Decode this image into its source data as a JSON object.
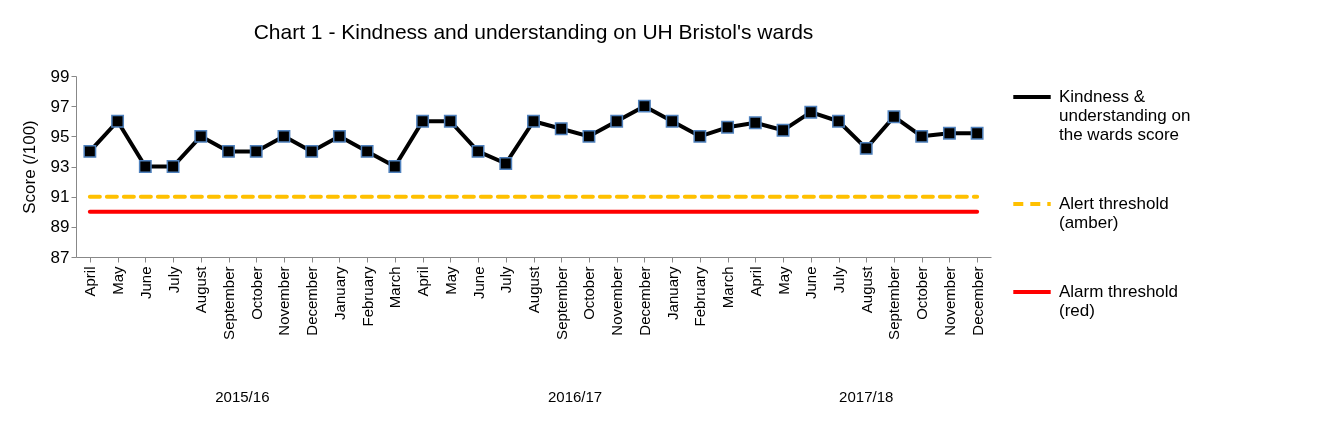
{
  "chart_data": {
    "type": "line",
    "title": "Chart 1 - Kindness and understanding on UH Bristol's wards",
    "ylabel": "Score (/100)",
    "categories": [
      "April",
      "May",
      "June",
      "July",
      "August",
      "September",
      "October",
      "November",
      "December",
      "January",
      "February",
      "March",
      "April",
      "May",
      "June",
      "July",
      "August",
      "September",
      "October",
      "November",
      "December",
      "January",
      "February",
      "March",
      "April",
      "May",
      "June",
      "July",
      "August",
      "September",
      "October",
      "November",
      "December"
    ],
    "series": [
      {
        "name": "Kindness & understanding on the wards score",
        "color": "#000000",
        "values": [
          94,
          96,
          93,
          93,
          95,
          94,
          94,
          95,
          94,
          95,
          94,
          93,
          96,
          96,
          94,
          93.2,
          96,
          95.5,
          95,
          96,
          97,
          96,
          95,
          95.6,
          95.9,
          95.4,
          96.6,
          96,
          94.2,
          96.3,
          95,
          95.2,
          95.2
        ]
      }
    ],
    "ylim": [
      87,
      99
    ],
    "yticks": [
      87,
      89,
      91,
      93,
      95,
      97,
      99
    ],
    "ref_lines": [
      {
        "axis": "y",
        "value": 91,
        "label": "Alert threshold (amber)",
        "color": "#ffc000",
        "line_style": "dashed"
      },
      {
        "axis": "y",
        "value": 90,
        "label": "Alarm threshold (red)",
        "color": "#ff0000",
        "line_style": "solid"
      }
    ],
    "annotations": [
      "2015/16",
      "2016/17",
      "2017/18"
    ],
    "marker": "square",
    "legend": "right",
    "grid": false
  }
}
